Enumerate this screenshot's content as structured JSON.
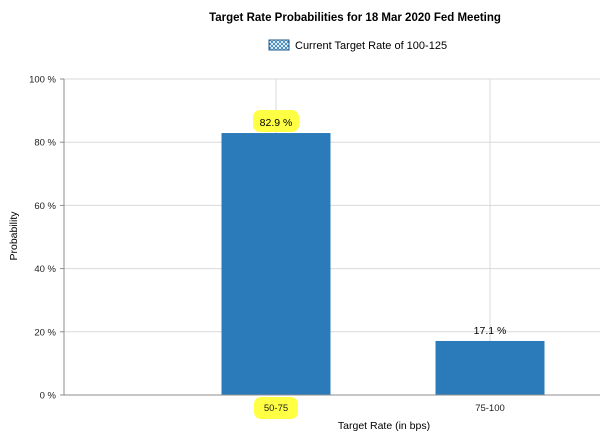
{
  "chart_data": {
    "type": "bar",
    "title": "Target Rate Probabilities for 18 Mar 2020 Fed Meeting",
    "legend": {
      "label": "Current Target Rate of 100-125",
      "placement": "top-center"
    },
    "categories": [
      "50-75",
      "75-100"
    ],
    "values": [
      82.9,
      17.1
    ],
    "data_labels": [
      "82.9 %",
      "17.1 %"
    ],
    "highlighted_labels": [
      "82.9 %",
      "50-75"
    ],
    "xlabel": "Target Rate (in bps)",
    "ylabel": "Probability",
    "ylim": [
      0,
      100
    ],
    "yticks": [
      0,
      20,
      40,
      60,
      80,
      100
    ],
    "ytick_labels": [
      "0 %",
      "20 %",
      "40 %",
      "60 %",
      "80 %",
      "100 %"
    ],
    "grid": true,
    "colors": {
      "bar": "#2b7bba",
      "grid": "#d9d9d9",
      "axis": "#8c8c8c",
      "highlight": "#ffff33",
      "legend_swatch": "#2b7bba"
    }
  }
}
